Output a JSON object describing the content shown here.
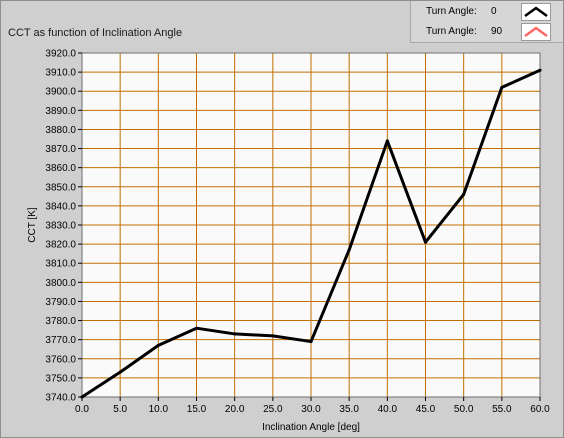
{
  "chart_data": {
    "type": "line",
    "title": "CCT as function of Inclination Angle",
    "xlabel": "Inclination Angle [deg]",
    "ylabel": "CCT [K]",
    "xlim": [
      0,
      60
    ],
    "ylim": [
      3740,
      3920
    ],
    "x_ticks": [
      "0.0",
      "5.0",
      "10.0",
      "15.0",
      "20.0",
      "25.0",
      "30.0",
      "35.0",
      "40.0",
      "45.0",
      "50.0",
      "55.0",
      "60.0"
    ],
    "y_ticks": [
      "3740.0",
      "3750.0",
      "3760.0",
      "3770.0",
      "3780.0",
      "3790.0",
      "3800.0",
      "3810.0",
      "3820.0",
      "3830.0",
      "3840.0",
      "3850.0",
      "3860.0",
      "3870.0",
      "3880.0",
      "3890.0",
      "3900.0",
      "3910.0",
      "3920.0"
    ],
    "grid": true,
    "legend_position": "top-right",
    "series": [
      {
        "name": "Turn Angle:",
        "turn_angle": "0",
        "color": "#000000",
        "x": [
          0,
          5,
          10,
          15,
          20,
          25,
          30,
          35,
          40,
          45,
          50,
          55,
          60
        ],
        "values": [
          3740,
          3753,
          3767,
          3776,
          3773,
          3772,
          3769,
          3817,
          3874,
          3821,
          3846,
          3902,
          3911
        ]
      },
      {
        "name": "Turn Angle:",
        "turn_angle": "90",
        "color": "#ff6666",
        "x": [],
        "values": []
      }
    ]
  },
  "colors": {
    "frame_bg": "#cfcfcf",
    "plot_bg": "#fafafa",
    "grid": "#c07000",
    "line": "#000000"
  }
}
